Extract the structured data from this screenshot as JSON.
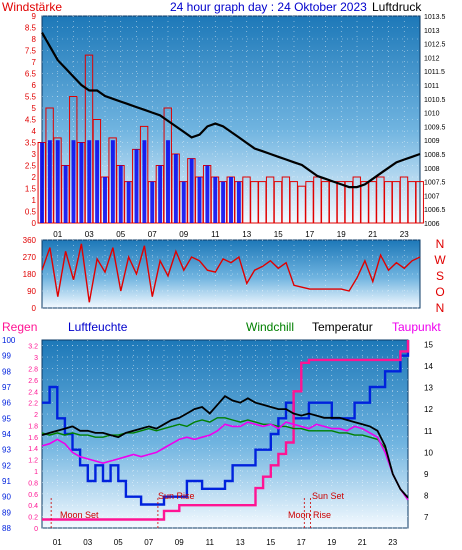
{
  "colors": {
    "wind": "#e00000",
    "gust_blue": "#0000ee",
    "pressure": "#000000",
    "rain": "#ff1493",
    "humidity": "#0022dd",
    "windchill": "#008000",
    "temperature": "#000000",
    "dewpoint": "#ee00ee",
    "grid": "#ffffff",
    "title": "#0000cc"
  },
  "texts": {
    "windstaerke": "Windstärke",
    "title": "24 hour graph day : 24 Oktober 2023",
    "luftdruck": "Luftdruck",
    "regen": "Regen",
    "luftfeuchte": "Luftfeuchte",
    "windchill": "Windchill",
    "temperatur": "Temperatur",
    "taupunkt": "Taupunkt",
    "moon_set": "Moon Set",
    "sun_rise": "Sun Rise",
    "sun_set": "Sun Set",
    "moon_rise": "Moon Rise"
  },
  "compass": [
    "N",
    "W",
    "S",
    "O",
    "N"
  ],
  "chart_data": [
    {
      "type": "line",
      "panel": "wind_pressure",
      "x_ticks": [
        "01",
        "03",
        "05",
        "07",
        "09",
        "11",
        "13",
        "15",
        "17",
        "19",
        "21",
        "23"
      ],
      "y_left_ticks": [
        "0",
        "0.5",
        "1",
        "1.5",
        "2",
        "2.5",
        "3",
        "3.5",
        "4",
        "4.5",
        "5",
        "5.5",
        "6",
        "6.5",
        "7",
        "7.5",
        "8",
        "8.5",
        "9"
      ],
      "y_right_ticks": [
        "1006",
        "1006.5",
        "1007",
        "1007.5",
        "1008",
        "1008.5",
        "1009",
        "1009.5",
        "1010",
        "1010.5",
        "1011",
        "1011.5",
        "1012",
        "1012.5",
        "1013",
        "1013.5"
      ],
      "ylim_left": [
        0,
        9
      ],
      "ylim_right": [
        1006,
        1013.5
      ],
      "xlim": [
        0,
        24
      ],
      "series": [
        {
          "x": [
            0,
            0.5,
            1,
            1.5,
            2,
            2.5,
            3,
            3.5,
            4,
            4.5,
            5,
            5.5,
            6,
            6.5,
            7,
            7.5,
            8,
            8.5,
            9,
            9.5,
            10,
            10.5,
            11,
            11.5,
            12,
            12.5,
            13,
            13.5,
            14,
            14.5,
            15,
            15.5,
            16,
            16.5,
            17,
            17.5,
            18,
            18.5,
            19,
            19.5,
            20,
            20.5,
            21,
            21.5,
            22,
            22.5,
            23,
            23.5,
            24
          ],
          "values": [
            1012.9,
            1012.4,
            1011.9,
            1011.6,
            1011.3,
            1011.0,
            1010.8,
            1010.8,
            1010.6,
            1010.5,
            1010.4,
            1010.3,
            1010.2,
            1010.1,
            1010.0,
            1009.9,
            1009.7,
            1009.5,
            1009.3,
            1009.1,
            1009.2,
            1009.5,
            1009.6,
            1009.5,
            1009.3,
            1009.1,
            1008.9,
            1008.7,
            1008.6,
            1008.5,
            1008.4,
            1008.3,
            1008.2,
            1008.1,
            1007.9,
            1007.7,
            1007.6,
            1007.5,
            1007.4,
            1007.3,
            1007.3,
            1007.4,
            1007.6,
            1007.8,
            1008.0,
            1008.2,
            1008.3,
            1008.4,
            1008.5
          ]
        },
        {
          "x": [
            0,
            0.5,
            1,
            1.5,
            2,
            2.5,
            3,
            3.5,
            4,
            4.5,
            5,
            5.5,
            6,
            6.5,
            7,
            7.5,
            8,
            8.5,
            9,
            9.5,
            10,
            10.5,
            11,
            11.5,
            12,
            12.5,
            13,
            13.5,
            14,
            14.5,
            15,
            15.5,
            16,
            16.5,
            17,
            17.5,
            18,
            18.5,
            19,
            19.5,
            20,
            20.5,
            21,
            21.5,
            22,
            22.5,
            23,
            23.5,
            24
          ],
          "values": [
            3.5,
            5.0,
            3.7,
            2.5,
            5.5,
            3.5,
            7.3,
            4.5,
            2.0,
            3.7,
            2.5,
            1.8,
            3.2,
            4.2,
            1.8,
            2.5,
            5.0,
            3.0,
            1.8,
            2.8,
            2.0,
            2.5,
            2.0,
            1.8,
            2.0,
            1.8,
            2.0,
            1.8,
            1.8,
            2.0,
            1.8,
            2.0,
            1.8,
            1.6,
            1.8,
            2.0,
            1.8,
            1.8,
            1.8,
            1.8,
            2.0,
            1.8,
            1.8,
            2.0,
            1.8,
            1.8,
            2.0,
            1.8,
            1.8
          ]
        }
      ]
    },
    {
      "type": "line",
      "panel": "wind_direction",
      "y_ticks": [
        "0",
        "90",
        "180",
        "270",
        "360"
      ],
      "ylim": [
        0,
        360
      ],
      "xlim": [
        0,
        24
      ],
      "series": [
        {
          "x": [
            0,
            0.5,
            1,
            1.5,
            2,
            2.5,
            3,
            3.5,
            4,
            4.5,
            5,
            5.5,
            6,
            6.5,
            7,
            7.5,
            8,
            8.5,
            9,
            9.5,
            10,
            10.5,
            11,
            11.5,
            12,
            12.5,
            13,
            13.5,
            14,
            14.5,
            15,
            15.5,
            16,
            16.5,
            17,
            17.5,
            18,
            18.5,
            19,
            19.5,
            20,
            20.5,
            21,
            21.5,
            22,
            22.5,
            23,
            23.5,
            24
          ],
          "values": [
            200,
            320,
            60,
            300,
            150,
            340,
            30,
            260,
            190,
            320,
            90,
            270,
            180,
            330,
            60,
            250,
            170,
            300,
            200,
            270,
            250,
            200,
            190,
            260,
            240,
            270,
            130,
            200,
            220,
            250,
            210,
            240,
            120,
            110,
            100,
            100,
            100,
            100,
            100,
            90,
            160,
            250,
            140,
            280,
            200,
            240,
            210,
            250,
            270
          ]
        }
      ]
    },
    {
      "type": "line",
      "panel": "temperature_humidity",
      "x_ticks": [
        "01",
        "03",
        "05",
        "07",
        "09",
        "11",
        "13",
        "15",
        "17",
        "19",
        "21",
        "23"
      ],
      "y_left_humidity_ticks": [
        "88",
        "89",
        "90",
        "91",
        "92",
        "93",
        "94",
        "95",
        "96",
        "97",
        "98",
        "99",
        "100"
      ],
      "y_left_rain_ticks": [
        "0",
        "0.1",
        "0.2",
        "0.3",
        "0.4",
        "0.5",
        "0.6",
        "0.7",
        "0.8",
        "0.9",
        "1",
        "1.1",
        "1.2",
        "1.3",
        "1.4",
        "1.5",
        "1.6",
        "1.7",
        "1.8",
        "1.9",
        "2",
        "2.1",
        "2.2",
        "2.3",
        "2.4",
        "2.5",
        "2.6",
        "2.7",
        "2.8",
        "2.9",
        "3",
        "3.1",
        "3.2",
        "3.3"
      ],
      "y_right_ticks": [
        "7",
        "8",
        "9",
        "10",
        "11",
        "12",
        "13",
        "14",
        "15"
      ],
      "ylim_humidity": [
        88,
        100
      ],
      "ylim_rain": [
        0,
        3.3
      ],
      "ylim_temp": [
        6.5,
        15.2
      ],
      "xlim": [
        0,
        24
      ],
      "annotations": [
        {
          "label": "Moon Set",
          "x": 0.6
        },
        {
          "label": "Sun Rise",
          "x": 7.6
        },
        {
          "label": "Sun Set",
          "x": 17.6
        },
        {
          "label": "Moon Rise",
          "x": 17.2
        }
      ],
      "series": [
        {
          "x": [
            0,
            0.5,
            1,
            1.5,
            2,
            2.5,
            3,
            3.5,
            4,
            4.5,
            5,
            5.5,
            6,
            6.5,
            7,
            7.5,
            8,
            8.5,
            9,
            9.5,
            10,
            10.5,
            11,
            11.5,
            12,
            12.5,
            13,
            13.5,
            14,
            14.5,
            15,
            15.5,
            16,
            16.5,
            17,
            17.5,
            18,
            18.5,
            19,
            19.5,
            20,
            20.5,
            21,
            21.5,
            22,
            22.5,
            23,
            23.5,
            24
          ],
          "values": [
            10.8,
            10.9,
            11.0,
            11.1,
            11.2,
            11.0,
            11.0,
            10.9,
            10.9,
            10.8,
            10.7,
            10.9,
            11.0,
            11.1,
            11.2,
            11.1,
            11.3,
            11.5,
            11.6,
            11.8,
            12.0,
            12.1,
            11.8,
            12.2,
            12.6,
            12.4,
            12.3,
            12.5,
            12.3,
            12.2,
            12.1,
            12.0,
            12.0,
            11.8,
            11.7,
            11.8,
            11.7,
            11.6,
            11.6,
            11.6,
            11.5,
            11.4,
            11.3,
            11.2,
            11.0,
            10.3,
            9.0,
            8.3,
            7.9
          ]
        },
        {
          "x": [
            0,
            0.5,
            1,
            1.5,
            2,
            2.5,
            3,
            3.5,
            4,
            4.5,
            5,
            5.5,
            6,
            6.5,
            7,
            7.5,
            8,
            8.5,
            9,
            9.5,
            10,
            10.5,
            11,
            11.5,
            12,
            12.5,
            13,
            13.5,
            14,
            14.5,
            15,
            15.5,
            16,
            16.5,
            17,
            17.5,
            18,
            18.5,
            19,
            19.5,
            20,
            20.5,
            21,
            21.5,
            22,
            22.5,
            23,
            23.5,
            24
          ],
          "values": [
            10.3,
            10.4,
            10.6,
            10.4,
            10.0,
            9.8,
            9.7,
            9.6,
            9.5,
            9.6,
            9.7,
            9.8,
            9.9,
            9.8,
            9.9,
            10.0,
            10.2,
            10.4,
            10.6,
            10.7,
            10.6,
            10.7,
            10.8,
            11.0,
            11.3,
            11.2,
            11.2,
            11.4,
            11.3,
            11.2,
            11.3,
            11.1,
            11.4,
            11.3,
            11.2,
            11.1,
            11.3,
            11.2,
            11.1,
            11.1,
            11.0,
            11.2,
            11.1,
            10.9,
            10.7,
            10.0,
            9.0,
            8.3,
            7.8
          ]
        },
        {
          "x": [
            0,
            0.5,
            1,
            1.5,
            2,
            2.5,
            3,
            3.5,
            4,
            4.5,
            5,
            5.5,
            6,
            6.5,
            7,
            7.5,
            8,
            8.5,
            9,
            9.5,
            10,
            10.5,
            11,
            11.5,
            12,
            12.5,
            13,
            13.5,
            14,
            14.5,
            15,
            15.5,
            16,
            16.5,
            17,
            17.5,
            18,
            18.5,
            19,
            19.5,
            20,
            20.5,
            21,
            21.5,
            22,
            22.5,
            23,
            23.5,
            24
          ],
          "values": [
            10.9,
            10.8,
            10.9,
            10.8,
            10.9,
            10.8,
            10.8,
            10.7,
            10.7,
            10.8,
            10.8,
            10.9,
            10.9,
            11.0,
            11.1,
            11.0,
            11.1,
            11.2,
            11.3,
            11.2,
            11.4,
            11.5,
            11.4,
            11.6,
            11.6,
            11.5,
            11.4,
            11.5,
            11.4,
            11.3,
            11.3,
            11.2,
            11.2,
            11.1,
            11.1,
            11.0,
            11.0,
            11.0,
            11.0,
            10.9,
            10.9,
            10.8,
            10.8,
            10.7,
            10.6,
            10.2,
            9.0,
            8.3,
            7.8
          ]
        },
        {
          "x": [
            0,
            0.5,
            1,
            1.5,
            2,
            2.5,
            3,
            3.5,
            4,
            4.5,
            5,
            5.5,
            6,
            6.5,
            7,
            7.5,
            8,
            8.5,
            9,
            9.5,
            10,
            10.5,
            11,
            11.5,
            12,
            12.5,
            13,
            13.5,
            14,
            14.5,
            15,
            15.5,
            16,
            16.5,
            17,
            17.5,
            18,
            18.5,
            19,
            19.5,
            20,
            20.5,
            21,
            21.5,
            22,
            22.5,
            23,
            23.5,
            24
          ],
          "values": [
            96,
            97,
            95,
            94,
            93,
            92,
            91,
            92,
            91,
            92,
            91,
            90,
            90,
            89.5,
            89.5,
            89.5,
            90,
            90,
            90,
            91,
            91,
            90.5,
            90.5,
            90.5,
            91,
            92,
            92,
            92,
            93,
            93,
            94,
            95,
            96,
            95,
            95,
            96,
            96,
            96,
            95,
            95,
            95,
            96,
            96,
            97,
            97,
            98,
            98,
            99,
            100
          ]
        },
        {
          "x": [
            0,
            0.5,
            1,
            1.5,
            2,
            2.5,
            3,
            3.5,
            4,
            4.5,
            5,
            5.5,
            6,
            6.5,
            7,
            7.5,
            8,
            8.5,
            9,
            9.5,
            10,
            10.5,
            11,
            11.5,
            12,
            12.5,
            13,
            13.5,
            14,
            14.5,
            15,
            15.5,
            16,
            16.5,
            17,
            17.5,
            18,
            18.5,
            19,
            19.5,
            20,
            20.5,
            21,
            21.5,
            22,
            22.5,
            23,
            23.5,
            24
          ],
          "values": [
            0.15,
            0.15,
            0.15,
            0.15,
            0.15,
            0.15,
            0.15,
            0.15,
            0.15,
            0.15,
            0.15,
            0.15,
            0.15,
            0.15,
            0.15,
            0.15,
            0.3,
            0.3,
            0.4,
            0.4,
            0.4,
            0.4,
            0.4,
            0.4,
            0.4,
            0.4,
            0.4,
            0.4,
            0.7,
            0.9,
            1.1,
            1.3,
            1.5,
            2.4,
            2.9,
            2.95,
            2.95,
            2.95,
            2.95,
            2.95,
            2.95,
            2.95,
            2.95,
            2.95,
            2.95,
            2.95,
            2.95,
            3.1,
            3.3
          ]
        }
      ]
    }
  ]
}
